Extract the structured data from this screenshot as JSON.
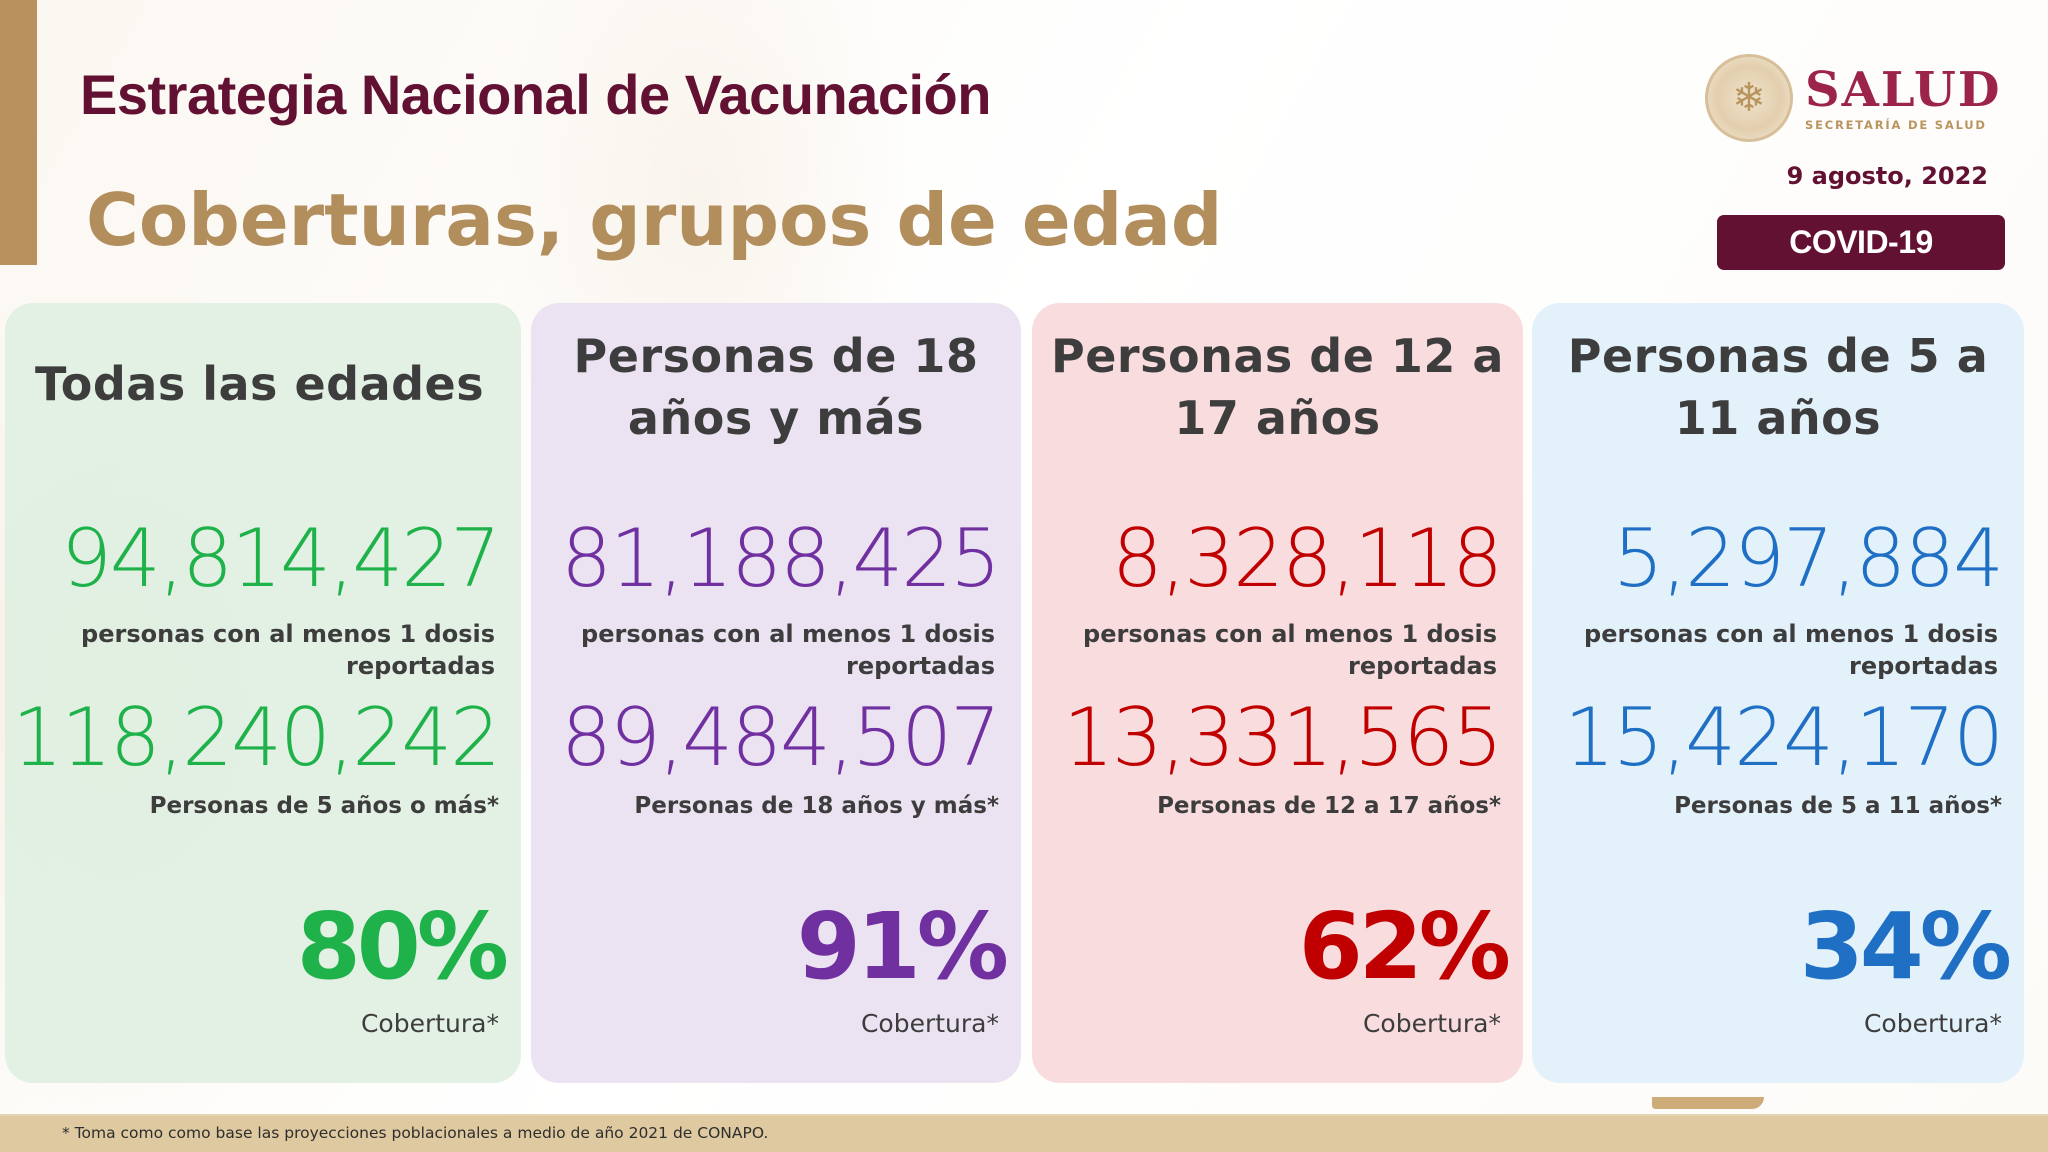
{
  "header": {
    "title": "Estrategia Nacional de Vacunación",
    "subtitle": "Coberturas, grupos de edad",
    "date": "9 agosto, 2022",
    "badge": {
      "main": "COVID-",
      "num": "19"
    },
    "logo": {
      "name": "SALUD",
      "tagline": "SECRETARÍA DE SALUD",
      "seal_icon": "mexico-coat-of-arms-icon"
    }
  },
  "colors": {
    "maroon": "#621132",
    "gold": "#b38e5d",
    "green": "#1fb14a",
    "purple": "#7030a0",
    "red": "#c00000",
    "blue": "#1f6fc5",
    "footer": "#dfc9a0"
  },
  "cards": [
    {
      "title": "Todas las edades",
      "vaccinated": "94,814,427",
      "vaccinated_label": "personas con al menos 1 dosis reportadas",
      "population": "118,240,242",
      "population_label": "Personas de 5 años o más*",
      "coverage": "80%",
      "coverage_label": "Cobertura*"
    },
    {
      "title": "Personas de 18 años y más",
      "vaccinated": "81,188,425",
      "vaccinated_label": "personas con al menos 1 dosis reportadas",
      "population": "89,484,507",
      "population_label": "Personas de 18 años y más*",
      "coverage": "91%",
      "coverage_label": "Cobertura*"
    },
    {
      "title": "Personas de 12 a 17 años",
      "vaccinated": "8,328,118",
      "vaccinated_label": "personas con al menos 1 dosis reportadas",
      "population": "13,331,565",
      "population_label": "Personas de 12 a 17 años*",
      "coverage": "62%",
      "coverage_label": "Cobertura*"
    },
    {
      "title": "Personas de 5 a 11 años",
      "vaccinated": "5,297,884",
      "vaccinated_label": "personas con al menos 1 dosis reportadas",
      "population": "15,424,170",
      "population_label": "Personas de 5 a 11 años*",
      "coverage": "34%",
      "coverage_label": "Cobertura*"
    }
  ],
  "footer": {
    "note": "* Toma como como base las proyecciones poblacionales a medio de año 2021 de CONAPO."
  }
}
